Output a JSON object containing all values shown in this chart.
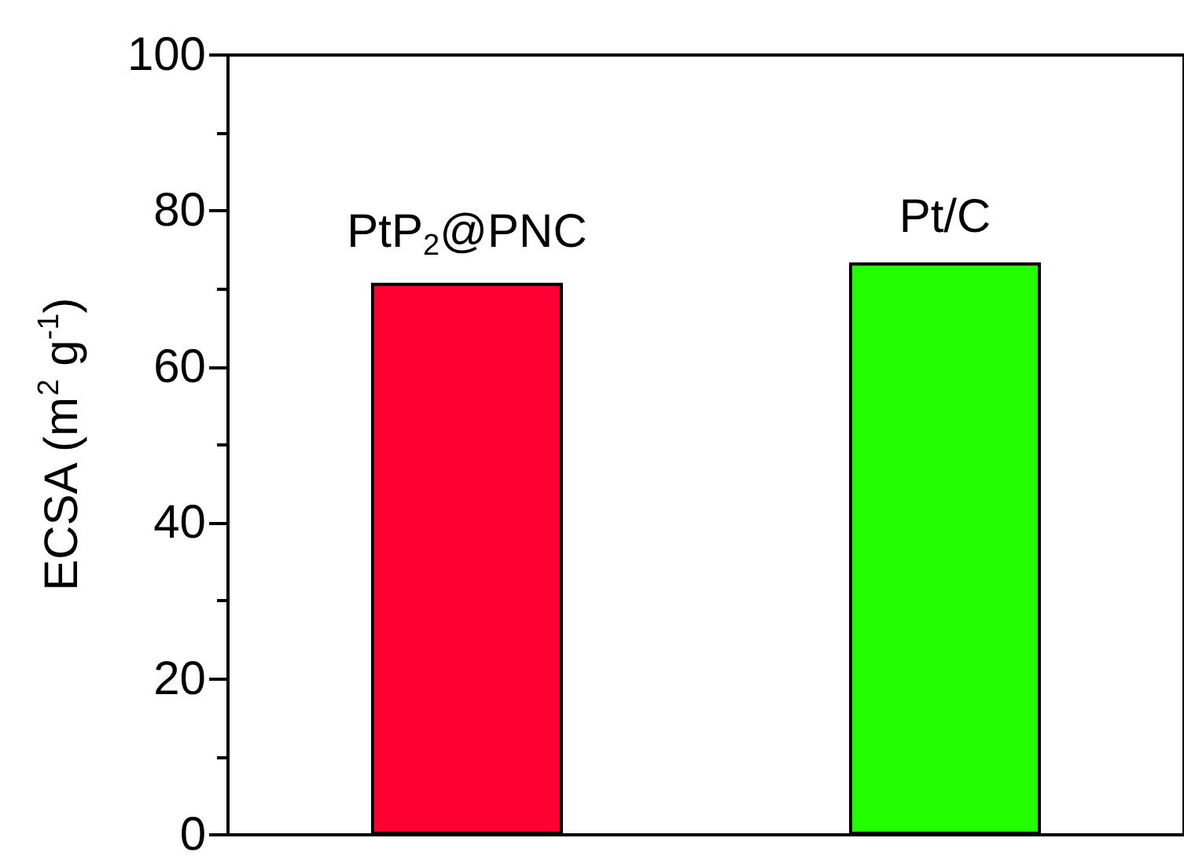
{
  "chart_data": {
    "type": "bar",
    "ylabel": "ECSA (m$^{2}$ g$^{-1}$)",
    "categories": [
      "PtP$_{2}$@PNC",
      "Pt/C"
    ],
    "values": [
      70.8,
      73.4
    ],
    "colors": [
      "#ff0033",
      "#22ff00"
    ],
    "ylim": [
      0,
      100
    ],
    "yticks": [
      0,
      20,
      40,
      60,
      80,
      100
    ],
    "grid": false
  }
}
